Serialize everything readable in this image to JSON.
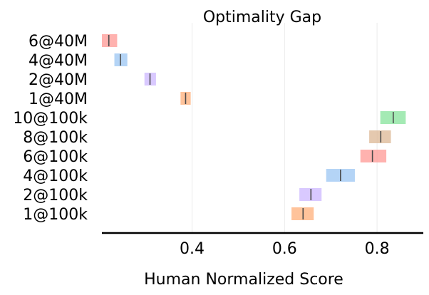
{
  "chart_data": {
    "type": "interval",
    "title": "Optimality Gap",
    "xlabel": "Human Normalized Score",
    "ylabel": "",
    "xlim": [
      0.205,
      0.9
    ],
    "xticks": [
      0.4,
      0.6,
      0.8
    ],
    "xtick_labels": [
      "0.4",
      "0.6",
      "0.8"
    ],
    "grid": "vertical",
    "categories": [
      "6@40M",
      "4@40M",
      "2@40M",
      "1@40M",
      "10@100k",
      "8@100k",
      "6@100k",
      "4@100k",
      "2@100k",
      "1@100k"
    ],
    "intervals": [
      {
        "category": "6@40M",
        "low": 0.205,
        "high": 0.238,
        "point": 0.22,
        "color": "#ff9f9b"
      },
      {
        "category": "4@40M",
        "low": 0.232,
        "high": 0.26,
        "point": 0.245,
        "color": "#a1c9f4"
      },
      {
        "category": "2@40M",
        "low": 0.297,
        "high": 0.322,
        "point": 0.309,
        "color": "#d0bbff"
      },
      {
        "category": "1@40M",
        "low": 0.375,
        "high": 0.397,
        "point": 0.386,
        "color": "#ffb482"
      },
      {
        "category": "10@100k",
        "low": 0.807,
        "high": 0.862,
        "point": 0.835,
        "color": "#8de5a1"
      },
      {
        "category": "8@100k",
        "low": 0.783,
        "high": 0.83,
        "point": 0.808,
        "color": "#debb9b"
      },
      {
        "category": "6@100k",
        "low": 0.764,
        "high": 0.82,
        "point": 0.79,
        "color": "#ff9f9b"
      },
      {
        "category": "4@100k",
        "low": 0.69,
        "high": 0.752,
        "point": 0.721,
        "color": "#a1c9f4"
      },
      {
        "category": "2@100k",
        "low": 0.632,
        "high": 0.68,
        "point": 0.657,
        "color": "#d0bbff"
      },
      {
        "category": "1@100k",
        "low": 0.615,
        "high": 0.663,
        "point": 0.64,
        "color": "#ffb482"
      }
    ]
  }
}
